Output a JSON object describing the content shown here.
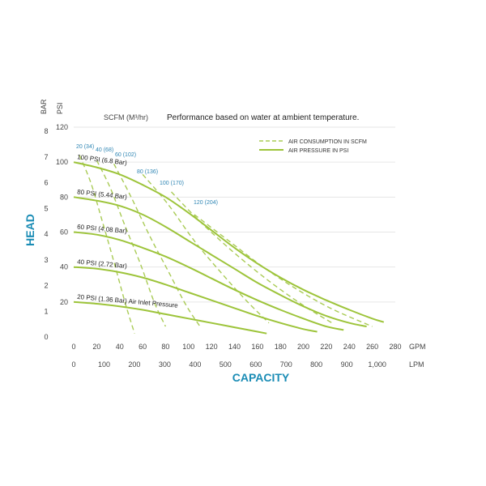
{
  "chart_data": {
    "type": "line",
    "title": "Performance based on water at ambient temperature.",
    "scfm_header": "SCFM (M³/hr)",
    "y_label": "HEAD",
    "x_label": "CAPACITY",
    "y_unit_bar": "BAR",
    "y_unit_psi": "PSI",
    "x_unit_gpm": "GPM",
    "x_unit_lpm": "LPM",
    "x_gpm_range": [
      0,
      280
    ],
    "y_psi_range": [
      0,
      120
    ],
    "y_psi_ticks": [
      "20",
      "40",
      "60",
      "80",
      "100",
      "120"
    ],
    "y_bar_ticks": [
      "0",
      "1",
      "2",
      "3",
      "4",
      "5",
      "6",
      "7",
      "8"
    ],
    "x_gpm_ticks": [
      "0",
      "20",
      "40",
      "60",
      "80",
      "100",
      "120",
      "140",
      "160",
      "180",
      "200",
      "220",
      "240",
      "260",
      "280"
    ],
    "x_lpm_ticks": [
      "0",
      "100",
      "200",
      "300",
      "400",
      "500",
      "600",
      "700",
      "800",
      "900",
      "1,000"
    ],
    "grid": true,
    "legend": {
      "position": "top-right",
      "items": [
        {
          "label": "AIR CONSUMPTION IN SCFM",
          "style": "dashed"
        },
        {
          "label": "AIR PRESSURE IN PSI",
          "style": "solid"
        }
      ]
    },
    "colors": {
      "curve": "#9dc43a",
      "dashed": "#a9cb55",
      "accent": "#1a8cb5",
      "scfm_label": "#2f86b4",
      "grid": "#e6e6e6"
    },
    "pressure_curves": [
      {
        "label": "100 PSI (6.8 Bar)",
        "x": [
          0,
          20,
          40,
          60,
          80,
          100,
          120,
          140,
          160,
          180,
          200,
          220,
          240,
          260,
          270
        ],
        "y": [
          100,
          97,
          93,
          87,
          80,
          71,
          61,
          51,
          42,
          34,
          27,
          21,
          15.5,
          10.5,
          8.5
        ]
      },
      {
        "label": "80 PSI (5.44 Bar)",
        "x": [
          0,
          20,
          40,
          60,
          80,
          100,
          120,
          140,
          160,
          180,
          200,
          220,
          240,
          255
        ],
        "y": [
          80,
          78,
          75,
          70,
          63,
          55,
          47,
          39,
          31,
          24,
          17.5,
          12,
          8,
          6
        ]
      },
      {
        "label": "60 PSI (4.08 Bar)",
        "x": [
          0,
          20,
          40,
          60,
          80,
          100,
          120,
          140,
          160,
          180,
          200,
          220,
          235
        ],
        "y": [
          60,
          58.5,
          55.5,
          51,
          46,
          40,
          33.5,
          27,
          21,
          15.5,
          10.5,
          6,
          4
        ]
      },
      {
        "label": "40 PSI (2.72 Bar)",
        "x": [
          0,
          20,
          40,
          60,
          80,
          100,
          120,
          140,
          160,
          180,
          200,
          212
        ],
        "y": [
          40,
          39,
          37,
          34,
          30,
          25.5,
          21,
          16.5,
          12,
          8,
          4.5,
          3
        ]
      },
      {
        "label": "20 PSI (1.36 Bar) Air Inlet Pressure",
        "x": [
          0,
          20,
          40,
          60,
          80,
          100,
          120,
          140,
          160,
          168
        ],
        "y": [
          20,
          19,
          17.5,
          15.5,
          13,
          10.5,
          8,
          5.5,
          3,
          2
        ]
      }
    ],
    "scfm_curves": [
      {
        "label": "20 (34)",
        "x": [
          5,
          15,
          25,
          35,
          45,
          53
        ],
        "y": [
          104,
          88,
          66,
          43,
          19,
          2
        ]
      },
      {
        "label": "40 (68)",
        "x": [
          20,
          32,
          45,
          58,
          70,
          80
        ],
        "y": [
          101,
          85,
          63,
          42,
          20,
          6
        ]
      },
      {
        "label": "60 (102)",
        "x": [
          35,
          50,
          66,
          82,
          98,
          110
        ],
        "y": [
          99,
          80,
          58,
          38,
          18,
          6
        ]
      },
      {
        "label": "80 (136)",
        "x": [
          60,
          82,
          105,
          128,
          150,
          170
        ],
        "y": [
          93,
          76,
          55,
          37,
          21,
          8
        ]
      },
      {
        "label": "100 (170)",
        "x": [
          85,
          110,
          140,
          170,
          200,
          225
        ],
        "y": [
          83,
          66,
          48,
          32,
          18,
          8
        ]
      },
      {
        "label": "120 (204)",
        "x": [
          105,
          135,
          165,
          195,
          225,
          260
        ],
        "y": [
          70,
          55,
          40,
          27,
          16,
          6
        ]
      }
    ]
  }
}
